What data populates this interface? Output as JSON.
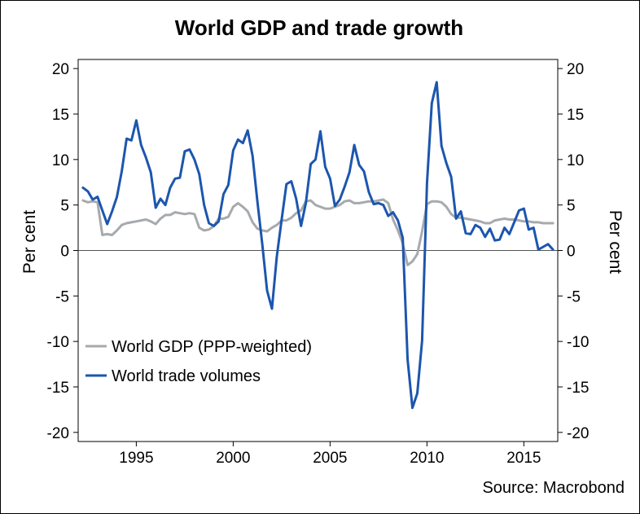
{
  "chart_data": {
    "type": "line",
    "title": "World GDP and trade growth",
    "ylabel_left": "Per cent",
    "ylabel_right": "Per cent",
    "source": "Source: Macrobond",
    "xlim": [
      1992,
      2016.75
    ],
    "ylim": [
      -21,
      21
    ],
    "x_ticks": [
      1995,
      2000,
      2005,
      2010,
      2015
    ],
    "y_ticks": [
      -20,
      -15,
      -10,
      -5,
      0,
      5,
      10,
      15,
      20
    ],
    "grid": false,
    "zero_line": true,
    "legend_position": "lower-left",
    "series": [
      {
        "name": "World GDP (PPP-weighted)",
        "color": "#a7aaad",
        "x": [
          1992.25,
          1992.5,
          1992.75,
          1993,
          1993.25,
          1993.5,
          1993.75,
          1994,
          1994.25,
          1994.5,
          1994.75,
          1995,
          1995.25,
          1995.5,
          1995.75,
          1996,
          1996.25,
          1996.5,
          1996.75,
          1997,
          1997.25,
          1997.5,
          1997.75,
          1998,
          1998.25,
          1998.5,
          1998.75,
          1999,
          1999.25,
          1999.5,
          1999.75,
          2000,
          2000.25,
          2000.5,
          2000.75,
          2001,
          2001.25,
          2001.5,
          2001.75,
          2002,
          2002.25,
          2002.5,
          2002.75,
          2003,
          2003.25,
          2003.5,
          2003.75,
          2004,
          2004.25,
          2004.5,
          2004.75,
          2005,
          2005.25,
          2005.5,
          2005.75,
          2006,
          2006.25,
          2006.5,
          2006.75,
          2007,
          2007.25,
          2007.5,
          2007.75,
          2008,
          2008.25,
          2008.5,
          2008.75,
          2009,
          2009.25,
          2009.5,
          2009.75,
          2010,
          2010.25,
          2010.5,
          2010.75,
          2011,
          2011.25,
          2011.5,
          2011.75,
          2012,
          2012.25,
          2012.5,
          2012.75,
          2013,
          2013.25,
          2013.5,
          2013.75,
          2014,
          2014.25,
          2014.5,
          2014.75,
          2015,
          2015.25,
          2015.5,
          2015.75,
          2016,
          2016.25,
          2016.5
        ],
        "y": [
          5.5,
          5.3,
          5.4,
          5.3,
          1.7,
          1.8,
          1.7,
          2.2,
          2.8,
          3.0,
          3.1,
          3.2,
          3.3,
          3.4,
          3.2,
          2.9,
          3.5,
          3.9,
          3.9,
          4.2,
          4.1,
          4.0,
          4.1,
          4.0,
          2.5,
          2.2,
          2.3,
          2.7,
          3.5,
          3.5,
          3.7,
          4.8,
          5.2,
          4.8,
          4.3,
          3.1,
          2.4,
          2.2,
          2.1,
          2.5,
          2.8,
          3.3,
          3.3,
          3.6,
          4.1,
          4.4,
          5.4,
          5.5,
          5.0,
          4.8,
          4.6,
          4.6,
          4.8,
          5.0,
          5.4,
          5.5,
          5.2,
          5.2,
          5.3,
          5.4,
          5.4,
          5.5,
          5.6,
          5.2,
          3.4,
          2.2,
          0.8,
          -1.6,
          -1.2,
          -0.4,
          2.1,
          5.1,
          5.4,
          5.4,
          5.3,
          4.8,
          4.0,
          3.6,
          3.6,
          3.5,
          3.4,
          3.3,
          3.2,
          3.0,
          3.0,
          3.3,
          3.4,
          3.5,
          3.4,
          3.4,
          3.3,
          3.2,
          3.2,
          3.1,
          3.1,
          3.0,
          3.0,
          3.0
        ]
      },
      {
        "name": "World trade volumes",
        "color": "#1c56ad",
        "x": [
          1992.25,
          1992.5,
          1992.75,
          1993,
          1993.25,
          1993.5,
          1993.75,
          1994,
          1994.25,
          1994.5,
          1994.75,
          1995,
          1995.25,
          1995.5,
          1995.75,
          1996,
          1996.25,
          1996.5,
          1996.75,
          1997,
          1997.25,
          1997.5,
          1997.75,
          1998,
          1998.25,
          1998.5,
          1998.75,
          1999,
          1999.25,
          1999.5,
          1999.75,
          2000,
          2000.25,
          2000.5,
          2000.75,
          2001,
          2001.25,
          2001.5,
          2001.75,
          2002,
          2002.25,
          2002.5,
          2002.75,
          2003,
          2003.25,
          2003.5,
          2003.75,
          2004,
          2004.25,
          2004.5,
          2004.75,
          2005,
          2005.25,
          2005.5,
          2005.75,
          2006,
          2006.25,
          2006.5,
          2006.75,
          2007,
          2007.25,
          2007.5,
          2007.75,
          2008,
          2008.25,
          2008.5,
          2008.75,
          2009,
          2009.25,
          2009.5,
          2009.75,
          2010,
          2010.25,
          2010.5,
          2010.75,
          2011,
          2011.25,
          2011.5,
          2011.75,
          2012,
          2012.25,
          2012.5,
          2012.75,
          2013,
          2013.25,
          2013.5,
          2013.75,
          2014,
          2014.25,
          2014.5,
          2014.75,
          2015,
          2015.25,
          2015.5,
          2015.75,
          2016,
          2016.25,
          2016.5
        ],
        "y": [
          6.9,
          6.5,
          5.6,
          5.9,
          4.4,
          2.9,
          4.3,
          5.9,
          8.7,
          12.3,
          12.1,
          14.3,
          11.6,
          10.2,
          8.6,
          4.7,
          5.7,
          5.0,
          6.9,
          7.9,
          8.0,
          10.9,
          11.1,
          10.0,
          8.4,
          5.0,
          3.0,
          2.7,
          3.2,
          6.2,
          7.2,
          11.0,
          12.2,
          11.8,
          13.2,
          10.4,
          5.4,
          0.7,
          -4.4,
          -6.4,
          -0.7,
          3.4,
          7.3,
          7.6,
          5.7,
          2.7,
          5.2,
          9.5,
          10.0,
          13.1,
          9.2,
          7.9,
          4.9,
          5.6,
          7.0,
          8.6,
          11.6,
          9.4,
          8.7,
          6.4,
          5.1,
          5.2,
          5.0,
          3.8,
          4.2,
          3.3,
          1.4,
          -12.0,
          -17.3,
          -15.7,
          -9.9,
          7.4,
          16.2,
          18.5,
          11.5,
          9.6,
          8.1,
          3.5,
          4.3,
          1.9,
          1.8,
          2.8,
          2.5,
          1.5,
          2.4,
          1.1,
          1.2,
          2.5,
          1.8,
          3.1,
          4.4,
          4.6,
          2.3,
          2.5,
          0.1,
          0.4,
          0.7,
          0.1
        ]
      }
    ]
  }
}
